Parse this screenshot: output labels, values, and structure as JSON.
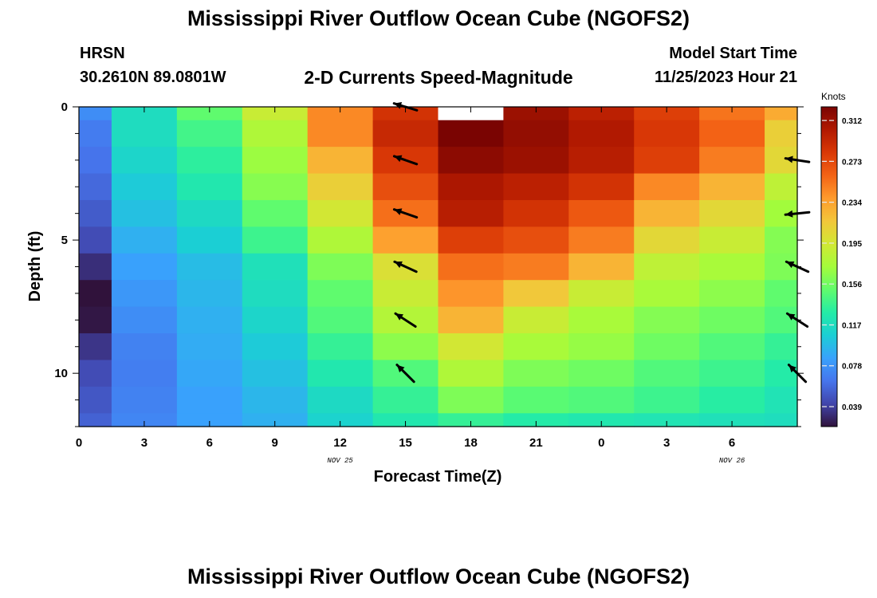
{
  "header": {
    "title": "Mississippi River Outflow Ocean Cube (NGOFS2)",
    "station": "HRSN",
    "coords": "30.2610N  89.0801W",
    "plot_title": "2-D Currents Speed-Magnitude",
    "model_start_label": "Model Start Time",
    "model_start_value": "11/25/2023 Hour 21"
  },
  "footer": {
    "title": "Mississippi River Outflow Ocean Cube (NGOFS2)"
  },
  "colors": {
    "missing": "#ffffff",
    "arrow": "#000000",
    "colormap": [
      "#30123b",
      "#4145ab",
      "#4675ed",
      "#39a2fc",
      "#1bcfd4",
      "#24eca6",
      "#61fc6c",
      "#a4fc3b",
      "#d1e834",
      "#f3c63a",
      "#fe9b2d",
      "#f36315",
      "#d93806",
      "#b11901",
      "#7a0402"
    ]
  },
  "chart_data": {
    "type": "heatmap",
    "xlabel": "Forecast Time(Z)",
    "ylabel": "Depth (ft)",
    "x_ticks": [
      "0",
      "3",
      "6",
      "9",
      "12",
      "15",
      "18",
      "21",
      "0",
      "3",
      "6"
    ],
    "x_range": [
      0,
      33
    ],
    "date_labels": [
      {
        "label": "NOV 25",
        "hour": 12
      },
      {
        "label": "NOV 26",
        "hour": 30
      }
    ],
    "y_ticks": [
      "0",
      "5",
      "10"
    ],
    "y_range": [
      0,
      12
    ],
    "colorbar": {
      "label": "Knots",
      "min": 0.02,
      "max": 0.325,
      "ticks": [
        "0.312",
        "0.273",
        "0.234",
        "0.195",
        "0.156",
        "0.117",
        "0.078",
        "0.039"
      ]
    },
    "columns_hours": [
      0,
      3,
      6,
      9,
      12,
      15,
      18,
      21,
      24,
      27,
      30,
      33
    ],
    "rows_depth_ft": [
      0,
      1,
      2,
      3,
      4,
      5,
      6,
      7,
      8,
      9,
      10,
      11,
      12
    ],
    "speed_knots": [
      [
        0.075,
        0.117,
        0.15,
        0.19,
        0.245,
        0.285,
        null,
        0.312,
        0.298,
        0.278,
        0.253,
        0.23
      ],
      [
        0.067,
        0.117,
        0.14,
        0.178,
        0.245,
        0.292,
        0.325,
        0.315,
        0.303,
        0.282,
        0.26,
        0.21
      ],
      [
        0.063,
        0.112,
        0.132,
        0.17,
        0.225,
        0.282,
        0.318,
        0.312,
        0.3,
        0.278,
        0.25,
        0.205
      ],
      [
        0.058,
        0.105,
        0.125,
        0.163,
        0.21,
        0.27,
        0.305,
        0.298,
        0.285,
        0.245,
        0.225,
        0.185
      ],
      [
        0.052,
        0.1,
        0.115,
        0.15,
        0.195,
        0.255,
        0.3,
        0.285,
        0.265,
        0.225,
        0.205,
        0.172
      ],
      [
        0.045,
        0.092,
        0.107,
        0.138,
        0.178,
        0.235,
        0.278,
        0.27,
        0.25,
        0.205,
        0.19,
        0.162
      ],
      [
        0.032,
        0.085,
        0.098,
        0.12,
        0.16,
        0.2,
        0.255,
        0.25,
        0.225,
        0.185,
        0.175,
        0.16
      ],
      [
        0.02,
        0.08,
        0.095,
        0.117,
        0.15,
        0.19,
        0.24,
        0.215,
        0.19,
        0.175,
        0.165,
        0.15
      ],
      [
        0.022,
        0.075,
        0.092,
        0.112,
        0.145,
        0.18,
        0.225,
        0.19,
        0.175,
        0.162,
        0.155,
        0.145
      ],
      [
        0.035,
        0.07,
        0.09,
        0.105,
        0.135,
        0.165,
        0.195,
        0.175,
        0.168,
        0.155,
        0.145,
        0.135
      ],
      [
        0.045,
        0.068,
        0.088,
        0.1,
        0.125,
        0.145,
        0.178,
        0.16,
        0.155,
        0.145,
        0.138,
        0.128
      ],
      [
        0.05,
        0.07,
        0.085,
        0.095,
        0.115,
        0.135,
        0.16,
        0.148,
        0.145,
        0.138,
        0.13,
        0.122
      ],
      [
        0.055,
        0.072,
        0.085,
        0.092,
        0.11,
        0.125,
        0.135,
        0.128,
        0.125,
        0.123,
        0.12,
        0.118
      ]
    ],
    "direction_vectors": [
      {
        "hour": 15,
        "depth": 0,
        "u": -1.0,
        "v": 0.3
      },
      {
        "hour": 15,
        "depth": 2,
        "u": -1.0,
        "v": 0.35
      },
      {
        "hour": 15,
        "depth": 4,
        "u": -1.0,
        "v": 0.35
      },
      {
        "hour": 15,
        "depth": 6,
        "u": -1.0,
        "v": 0.45
      },
      {
        "hour": 15,
        "depth": 8,
        "u": -1.0,
        "v": 0.65
      },
      {
        "hour": 15,
        "depth": 10,
        "u": -1.0,
        "v": 1.0
      },
      {
        "hour": 33,
        "depth": 2,
        "u": -1.0,
        "v": 0.15
      },
      {
        "hour": 33,
        "depth": 4,
        "u": -1.0,
        "v": -0.1
      },
      {
        "hour": 33,
        "depth": 6,
        "u": -1.0,
        "v": 0.45
      },
      {
        "hour": 33,
        "depth": 8,
        "u": -1.0,
        "v": 0.65
      },
      {
        "hour": 33,
        "depth": 10,
        "u": -1.0,
        "v": 1.0
      }
    ]
  }
}
